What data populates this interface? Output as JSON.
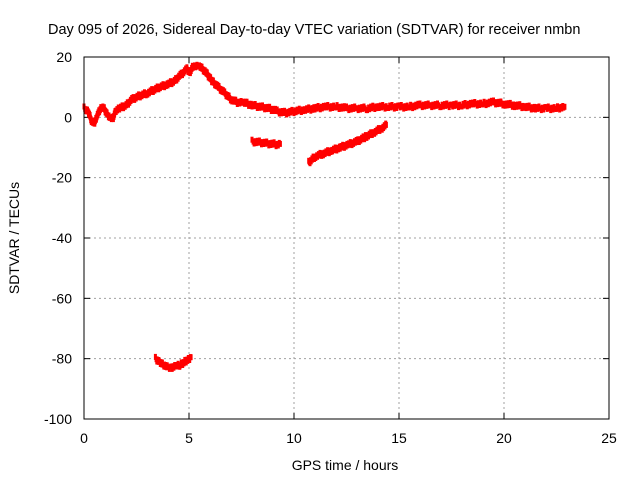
{
  "chart_data": {
    "type": "scatter",
    "title": "Day 095 of 2026, Sidereal Day-to-day VTEC variation (SDTVAR) for receiver nmbn",
    "xlabel": "GPS time / hours",
    "ylabel": "SDTVAR / TECUs",
    "xlim": [
      0,
      25
    ],
    "ylim": [
      -100,
      20
    ],
    "xticks": [
      "0",
      "5",
      "10",
      "15",
      "20",
      "25"
    ],
    "yticks": [
      "20",
      "0",
      "-20",
      "-40",
      "-60",
      "-80",
      "-100"
    ],
    "grid": true,
    "legend": "none",
    "series_color": "#ff0000",
    "series": [
      {
        "name": "main-trace",
        "points": [
          [
            0.0,
            3
          ],
          [
            0.2,
            2
          ],
          [
            0.35,
            -1
          ],
          [
            0.5,
            -2
          ],
          [
            0.65,
            1
          ],
          [
            0.8,
            3
          ],
          [
            0.95,
            3
          ],
          [
            1.1,
            1
          ],
          [
            1.25,
            0
          ],
          [
            1.4,
            0
          ],
          [
            1.5,
            2
          ],
          [
            1.7,
            3
          ],
          [
            2.0,
            4
          ],
          [
            2.3,
            6
          ],
          [
            2.6,
            7
          ],
          [
            3.0,
            8
          ],
          [
            3.3,
            9
          ],
          [
            3.6,
            10
          ],
          [
            4.0,
            11
          ],
          [
            4.3,
            12
          ],
          [
            4.6,
            14
          ],
          [
            4.9,
            16
          ],
          [
            5.05,
            15
          ],
          [
            5.2,
            17
          ],
          [
            5.5,
            17
          ],
          [
            5.8,
            15
          ],
          [
            6.1,
            12
          ],
          [
            6.4,
            10
          ],
          [
            6.7,
            8
          ],
          [
            7.0,
            6
          ],
          [
            7.3,
            5
          ],
          [
            7.6,
            5
          ],
          [
            8.0,
            4
          ],
          [
            8.4,
            3.5
          ],
          [
            8.8,
            3
          ],
          [
            9.2,
            2
          ],
          [
            9.6,
            1.5
          ],
          [
            10.0,
            2
          ],
          [
            10.5,
            2.5
          ],
          [
            11.0,
            3
          ],
          [
            11.5,
            3.5
          ],
          [
            12.0,
            3.5
          ],
          [
            12.5,
            3
          ],
          [
            13.0,
            3
          ],
          [
            13.5,
            3
          ],
          [
            14.0,
            3.5
          ],
          [
            14.5,
            3.5
          ],
          [
            15.0,
            3.5
          ],
          [
            15.5,
            3.5
          ],
          [
            16.0,
            4
          ],
          [
            16.5,
            4
          ],
          [
            17.0,
            4
          ],
          [
            17.5,
            4
          ],
          [
            18.0,
            4
          ],
          [
            18.5,
            4.5
          ],
          [
            19.0,
            4.5
          ],
          [
            19.5,
            5
          ],
          [
            20.0,
            4.5
          ],
          [
            20.5,
            4
          ],
          [
            21.0,
            3.5
          ],
          [
            21.5,
            3
          ],
          [
            22.0,
            3
          ],
          [
            22.5,
            3
          ],
          [
            22.9,
            3.5
          ]
        ]
      },
      {
        "name": "arc-near-minus-8",
        "points": [
          [
            8.0,
            -8
          ],
          [
            8.4,
            -8.3
          ],
          [
            8.8,
            -8.7
          ],
          [
            9.2,
            -9
          ],
          [
            9.35,
            -8.8
          ]
        ]
      },
      {
        "name": "rising-arc",
        "points": [
          [
            10.7,
            -15
          ],
          [
            11.0,
            -13
          ],
          [
            11.4,
            -12
          ],
          [
            11.8,
            -11
          ],
          [
            12.2,
            -10
          ],
          [
            12.6,
            -9
          ],
          [
            13.0,
            -8
          ],
          [
            13.4,
            -6.5
          ],
          [
            13.8,
            -5
          ],
          [
            14.2,
            -3.5
          ],
          [
            14.4,
            -2.5
          ]
        ]
      },
      {
        "name": "low-arc",
        "points": [
          [
            3.4,
            -80
          ],
          [
            3.6,
            -81
          ],
          [
            3.8,
            -82
          ],
          [
            4.0,
            -83
          ],
          [
            4.2,
            -83
          ],
          [
            4.4,
            -82.5
          ],
          [
            4.6,
            -82
          ],
          [
            4.8,
            -81
          ],
          [
            5.0,
            -80
          ],
          [
            5.1,
            -79.5
          ]
        ]
      }
    ]
  }
}
